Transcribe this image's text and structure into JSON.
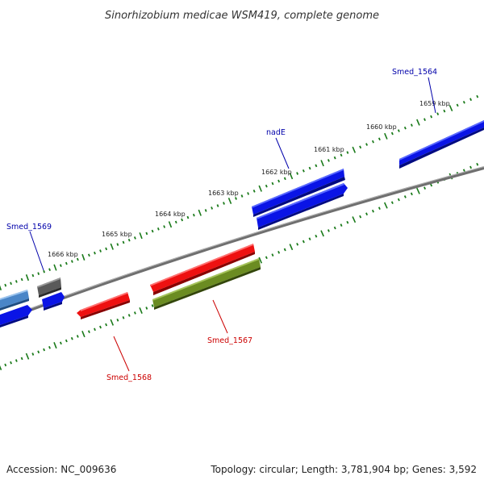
{
  "title": "Sinorhizobium medicae WSM419, complete genome",
  "footer": {
    "accession": "Accession: NC_009636",
    "topology": "Topology: circular; Length: 3,781,904 bp; Genes: 3,592"
  },
  "ticks": [
    {
      "label": "1659 kbp"
    },
    {
      "label": "1660 kbp"
    },
    {
      "label": "1661 kbp"
    },
    {
      "label": "1662 kbp"
    },
    {
      "label": "1663 kbp"
    },
    {
      "label": "1664 kbp"
    },
    {
      "label": "1665 kbp"
    },
    {
      "label": "1666 kbp"
    }
  ],
  "gene_labels": [
    {
      "name": "Smed_1564",
      "color": "#0000aa"
    },
    {
      "name": "nadE",
      "color": "#0000aa"
    },
    {
      "name": "Smed_1569",
      "color": "#0000aa"
    },
    {
      "name": "Smed_1567",
      "color": "#cc0000"
    },
    {
      "name": "Smed_1568",
      "color": "#cc0000"
    }
  ],
  "colors": {
    "blue_gene": "#0a14e6",
    "red_gene": "#ee1111",
    "olive_gene": "#6b8c22",
    "gray_gene": "#5a5a5a",
    "light_blue_gene": "#4a86c8",
    "backbone": "#7f7f7f",
    "tick_green": "#1a7a1a"
  }
}
